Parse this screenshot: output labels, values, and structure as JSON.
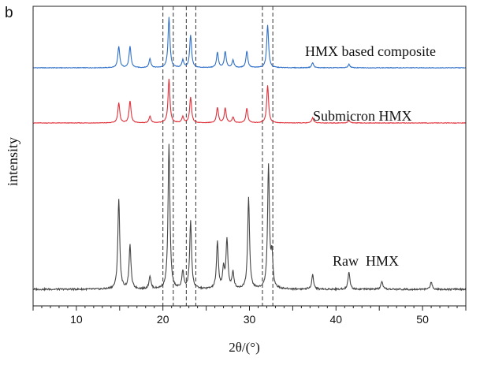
{
  "chart_data": {
    "type": "line",
    "panel_label": "b",
    "xlabel": "2θ/(°)",
    "ylabel": "intensity",
    "xlim": [
      5,
      55
    ],
    "xticks": [
      10,
      20,
      30,
      40,
      50
    ],
    "grid": false,
    "legend": "inline labels",
    "reference_lines_2theta": [
      20.0,
      21.2,
      22.7,
      23.8,
      31.5,
      32.7
    ],
    "series": [
      {
        "name": "HMX based composite",
        "color": "#2f6fc7",
        "peaks": [
          [
            14.9,
            0.42
          ],
          [
            16.2,
            0.42
          ],
          [
            18.5,
            0.18
          ],
          [
            20.7,
            1.0
          ],
          [
            22.3,
            0.15
          ],
          [
            23.2,
            0.65
          ],
          [
            26.3,
            0.3
          ],
          [
            27.2,
            0.32
          ],
          [
            28.1,
            0.15
          ],
          [
            29.7,
            0.33
          ],
          [
            32.1,
            0.85
          ],
          [
            37.3,
            0.1
          ],
          [
            41.5,
            0.07
          ]
        ]
      },
      {
        "name": "Submicron HMX",
        "color": "#e0303a",
        "peaks": [
          [
            14.9,
            0.45
          ],
          [
            16.2,
            0.5
          ],
          [
            18.5,
            0.15
          ],
          [
            20.7,
            1.0
          ],
          [
            22.3,
            0.14
          ],
          [
            23.2,
            0.58
          ],
          [
            26.3,
            0.35
          ],
          [
            27.2,
            0.33
          ],
          [
            28.1,
            0.13
          ],
          [
            29.7,
            0.33
          ],
          [
            32.1,
            0.85
          ],
          [
            37.3,
            0.12
          ],
          [
            41.5,
            0.06
          ]
        ]
      },
      {
        "name": "Raw HMX",
        "color": "#454545",
        "peaks": [
          [
            14.9,
            0.62
          ],
          [
            16.2,
            0.3
          ],
          [
            18.5,
            0.09
          ],
          [
            20.7,
            1.0
          ],
          [
            22.3,
            0.12
          ],
          [
            23.2,
            0.47
          ],
          [
            26.3,
            0.32
          ],
          [
            27.0,
            0.13
          ],
          [
            27.4,
            0.34
          ],
          [
            28.1,
            0.11
          ],
          [
            29.9,
            0.63
          ],
          [
            32.2,
            0.84
          ],
          [
            32.6,
            0.22
          ],
          [
            37.3,
            0.1
          ],
          [
            41.5,
            0.12
          ],
          [
            45.3,
            0.05
          ],
          [
            51.0,
            0.05
          ]
        ]
      }
    ]
  }
}
